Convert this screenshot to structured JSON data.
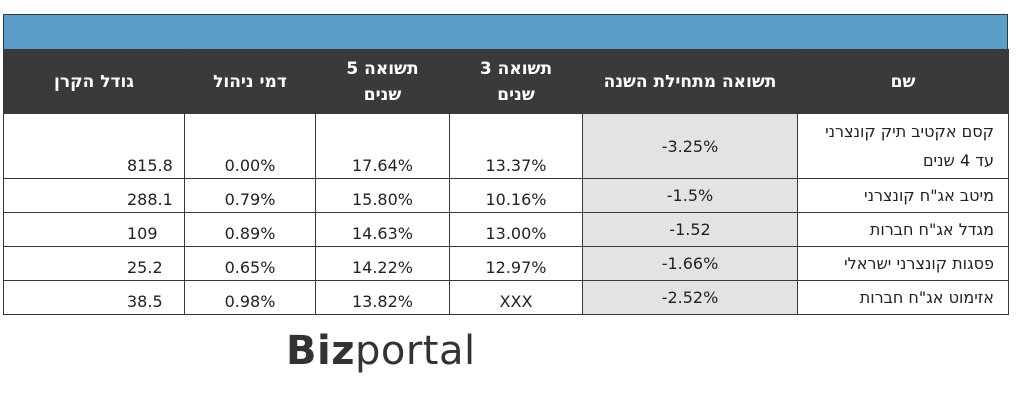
{
  "table": {
    "headers": {
      "name": "שם",
      "ytd": "תשואה מתחילת השנה",
      "ret3_line1": "תשואה 3",
      "ret3_line2": "שנים",
      "ret5_line1": "תשואה 5",
      "ret5_line2": "שנים",
      "fee": "דמי ניהול",
      "size": "גודל הקרן"
    },
    "rows": [
      {
        "name_line1": "קסם אקטיב תיק קונצרני",
        "name_line2": "עד 4 שנים",
        "ytd": "-3.25%",
        "ret3": "13.37%",
        "ret5": "17.64%",
        "fee": "0.00%",
        "size": "815.8"
      },
      {
        "name_line1": "מיטב אג\"ח קונצרני",
        "name_line2": "",
        "ytd": "-1.5%",
        "ret3": "10.16%",
        "ret5": "15.80%",
        "fee": "0.79%",
        "size": "288.1"
      },
      {
        "name_line1": "מגדל אג\"ח חברות",
        "name_line2": "",
        "ytd": "-1.52",
        "ret3": "13.00%",
        "ret5": "14.63%",
        "fee": "0.89%",
        "size": "109"
      },
      {
        "name_line1": "פסגות קונצרני ישראלי",
        "name_line2": "",
        "ytd": "-1.66%",
        "ret3": "12.97%",
        "ret5": "14.22%",
        "fee": "0.65%",
        "size": "25.2"
      },
      {
        "name_line1": "אזימוט אג\"ח חברות",
        "name_line2": "",
        "ytd": "-2.52%",
        "ret3": "XXX",
        "ret5": "13.82%",
        "fee": "0.98%",
        "size": "38.5"
      }
    ]
  },
  "logo": {
    "part1": "Biz",
    "part2": "portal"
  },
  "colors": {
    "banner": "#5b9fc8",
    "header_bg": "#3a3a3a",
    "ytd_bg": "#e3e3e3"
  }
}
